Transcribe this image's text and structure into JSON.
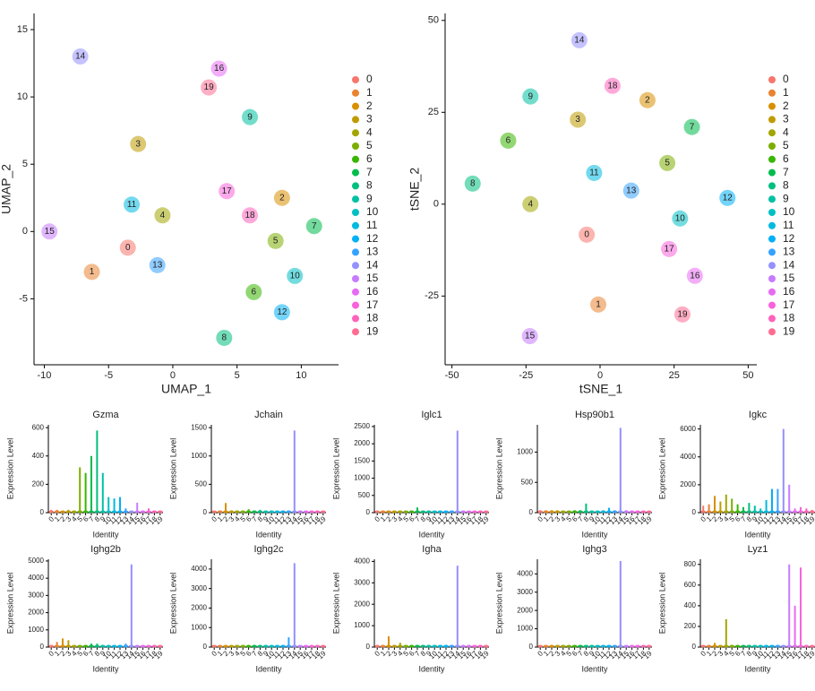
{
  "chart_data": [
    {
      "type": "scatter",
      "xlabel": "UMAP_1",
      "ylabel": "UMAP_2",
      "xlim": [
        -10.8,
        12.9
      ],
      "ylim": [
        -9.9,
        16.2
      ],
      "xticks": [
        -10,
        -5,
        0,
        5,
        10
      ],
      "yticks": [
        -5,
        0,
        5,
        10,
        15
      ],
      "categories": [
        "0",
        "1",
        "2",
        "3",
        "4",
        "5",
        "6",
        "7",
        "8",
        "9",
        "10",
        "11",
        "12",
        "13",
        "14",
        "15",
        "16",
        "17",
        "18",
        "19"
      ],
      "x": [
        -3.5,
        -6.3,
        8.5,
        -2.7,
        -0.8,
        8,
        6.3,
        11,
        4,
        6,
        9.5,
        -3.2,
        8.5,
        -1.2,
        -7.2,
        -9.6,
        3.6,
        4.2,
        6,
        2.8
      ],
      "values": [
        -1.2,
        -3,
        2.5,
        6.5,
        1.2,
        -0.7,
        -4.5,
        0.4,
        -7.9,
        8.5,
        -3.3,
        2,
        -6,
        -2.5,
        13,
        0,
        12.1,
        3,
        1.2,
        10.7
      ],
      "colors": [
        "#F8766D",
        "#EA8331",
        "#D89000",
        "#C09B00",
        "#A3A500",
        "#7CAE00",
        "#39B600",
        "#00BB4E",
        "#00BF7D",
        "#00C1A3",
        "#00BFC4",
        "#00BAE0",
        "#00B0F6",
        "#35A2FF",
        "#9590FF",
        "#C77CFF",
        "#E76BF3",
        "#FA62DB",
        "#FF62BC",
        "#FF6C91"
      ]
    },
    {
      "type": "scatter",
      "xlabel": "tSNE_1",
      "ylabel": "tSNE_2",
      "xlim": [
        -52.3,
        52.9
      ],
      "ylim": [
        -43.7,
        51.9
      ],
      "xticks": [
        -50,
        -25,
        0,
        25,
        50
      ],
      "yticks": [
        -25,
        0,
        25,
        50
      ],
      "categories": [
        "0",
        "1",
        "2",
        "3",
        "4",
        "5",
        "6",
        "7",
        "8",
        "9",
        "10",
        "11",
        "12",
        "13",
        "14",
        "15",
        "16",
        "17",
        "18",
        "19"
      ],
      "x": [
        -4.5,
        -0.6,
        16,
        -7.5,
        -23.5,
        22.7,
        -31,
        31,
        -43,
        -23.5,
        27,
        -2,
        43,
        10.5,
        -7,
        -23.7,
        32,
        23.3,
        4.2,
        27.8
      ],
      "values": [
        -8.3,
        -27.3,
        28.3,
        23,
        0,
        11.2,
        17.3,
        21,
        5.6,
        29.3,
        -3.9,
        8.5,
        1.7,
        3.7,
        44.6,
        -35.9,
        -19.5,
        -12.2,
        32.2,
        -30
      ],
      "colors": [
        "#F8766D",
        "#EA8331",
        "#D89000",
        "#C09B00",
        "#A3A500",
        "#7CAE00",
        "#39B600",
        "#00BB4E",
        "#00BF7D",
        "#00C1A3",
        "#00BFC4",
        "#00BAE0",
        "#00B0F6",
        "#35A2FF",
        "#9590FF",
        "#C77CFF",
        "#E76BF3",
        "#FA62DB",
        "#FF62BC",
        "#FF6C91"
      ]
    },
    {
      "type": "violin",
      "title": "Gzma",
      "ylabel": "Expression Level",
      "xlabel": "Identity",
      "ylim": [
        0,
        620
      ],
      "yticks": [
        0,
        200,
        400,
        600
      ],
      "categories": [
        "0",
        "1",
        "2",
        "3",
        "4",
        "5",
        "6",
        "7",
        "8",
        "9",
        "10",
        "11",
        "12",
        "13",
        "14",
        "15",
        "16",
        "17",
        "18",
        "19"
      ],
      "values": [
        20,
        20,
        10,
        20,
        10,
        320,
        280,
        400,
        580,
        280,
        110,
        100,
        110,
        30,
        10,
        70,
        10,
        30,
        10,
        10
      ],
      "colors": [
        "#F8766D",
        "#EA8331",
        "#D89000",
        "#C09B00",
        "#A3A500",
        "#7CAE00",
        "#39B600",
        "#00BB4E",
        "#00BF7D",
        "#00C1A3",
        "#00BFC4",
        "#00BAE0",
        "#00B0F6",
        "#35A2FF",
        "#9590FF",
        "#C77CFF",
        "#E76BF3",
        "#FA62DB",
        "#FF62BC",
        "#FF6C91"
      ]
    },
    {
      "type": "violin",
      "title": "Jchain",
      "ylabel": "Expression Level",
      "xlabel": "Identity",
      "ylim": [
        0,
        1550
      ],
      "yticks": [
        0,
        500,
        1000,
        1500
      ],
      "categories": [
        "0",
        "1",
        "2",
        "3",
        "4",
        "5",
        "6",
        "7",
        "8",
        "9",
        "10",
        "11",
        "12",
        "13",
        "14",
        "15",
        "16",
        "17",
        "18",
        "19"
      ],
      "values": [
        30,
        20,
        170,
        40,
        40,
        30,
        60,
        30,
        50,
        30,
        20,
        20,
        30,
        40,
        1450,
        40,
        20,
        20,
        20,
        20
      ],
      "colors": [
        "#F8766D",
        "#EA8331",
        "#D89000",
        "#C09B00",
        "#A3A500",
        "#7CAE00",
        "#39B600",
        "#00BB4E",
        "#00BF7D",
        "#00C1A3",
        "#00BFC4",
        "#00BAE0",
        "#00B0F6",
        "#35A2FF",
        "#9590FF",
        "#C77CFF",
        "#E76BF3",
        "#FA62DB",
        "#FF62BC",
        "#FF6C91"
      ]
    },
    {
      "type": "violin",
      "title": "Iglc1",
      "ylabel": "Expression Level",
      "xlabel": "Identity",
      "ylim": [
        0,
        2550
      ],
      "yticks": [
        0,
        500,
        1000,
        1500,
        2000,
        2500
      ],
      "categories": [
        "0",
        "1",
        "2",
        "3",
        "4",
        "5",
        "6",
        "7",
        "8",
        "9",
        "10",
        "11",
        "12",
        "13",
        "14",
        "15",
        "16",
        "17",
        "18",
        "19"
      ],
      "values": [
        40,
        30,
        30,
        30,
        30,
        30,
        30,
        150,
        30,
        30,
        30,
        30,
        30,
        30,
        2380,
        30,
        30,
        30,
        30,
        30
      ],
      "colors": [
        "#F8766D",
        "#EA8331",
        "#D89000",
        "#C09B00",
        "#A3A500",
        "#7CAE00",
        "#39B600",
        "#00BB4E",
        "#00BF7D",
        "#00C1A3",
        "#00BFC4",
        "#00BAE0",
        "#00B0F6",
        "#35A2FF",
        "#9590FF",
        "#C77CFF",
        "#E76BF3",
        "#FA62DB",
        "#FF62BC",
        "#FF6C91"
      ]
    },
    {
      "type": "violin",
      "title": "Hsp90b1",
      "ylabel": "Expression Level",
      "xlabel": "Identity",
      "ylim": [
        0,
        1450
      ],
      "yticks": [
        0,
        500,
        1000
      ],
      "categories": [
        "0",
        "1",
        "2",
        "3",
        "4",
        "5",
        "6",
        "7",
        "8",
        "9",
        "10",
        "11",
        "12",
        "13",
        "14",
        "15",
        "16",
        "17",
        "18",
        "19"
      ],
      "values": [
        40,
        40,
        40,
        40,
        30,
        30,
        40,
        40,
        150,
        30,
        30,
        40,
        80,
        40,
        1400,
        40,
        30,
        30,
        30,
        30
      ],
      "colors": [
        "#F8766D",
        "#EA8331",
        "#D89000",
        "#C09B00",
        "#A3A500",
        "#7CAE00",
        "#39B600",
        "#00BB4E",
        "#00BF7D",
        "#00C1A3",
        "#00BFC4",
        "#00BAE0",
        "#00B0F6",
        "#35A2FF",
        "#9590FF",
        "#C77CFF",
        "#E76BF3",
        "#FA62DB",
        "#FF62BC",
        "#FF6C91"
      ]
    },
    {
      "type": "violin",
      "title": "Igkc",
      "ylabel": "Expression Level",
      "xlabel": "Identity",
      "ylim": [
        0,
        6300
      ],
      "yticks": [
        0,
        2000,
        4000,
        6000
      ],
      "categories": [
        "0",
        "1",
        "2",
        "3",
        "4",
        "5",
        "6",
        "7",
        "8",
        "9",
        "10",
        "11",
        "12",
        "13",
        "14",
        "15",
        "16",
        "17",
        "18",
        "19"
      ],
      "values": [
        500,
        600,
        1200,
        800,
        1300,
        1000,
        600,
        400,
        700,
        500,
        300,
        900,
        1700,
        1700,
        6000,
        2000,
        300,
        400,
        300,
        200
      ],
      "colors": [
        "#F8766D",
        "#EA8331",
        "#D89000",
        "#C09B00",
        "#A3A500",
        "#7CAE00",
        "#39B600",
        "#00BB4E",
        "#00BF7D",
        "#00C1A3",
        "#00BFC4",
        "#00BAE0",
        "#00B0F6",
        "#35A2FF",
        "#9590FF",
        "#C77CFF",
        "#E76BF3",
        "#FA62DB",
        "#FF62BC",
        "#FF6C91"
      ]
    },
    {
      "type": "violin",
      "title": "Ighg2b",
      "ylabel": "Expression Level",
      "xlabel": "Identity",
      "ylim": [
        0,
        5100
      ],
      "yticks": [
        0,
        1000,
        2000,
        3000,
        4000,
        5000
      ],
      "categories": [
        "0",
        "1",
        "2",
        "3",
        "4",
        "5",
        "6",
        "7",
        "8",
        "9",
        "10",
        "11",
        "12",
        "13",
        "14",
        "15",
        "16",
        "17",
        "18",
        "19"
      ],
      "values": [
        100,
        300,
        500,
        400,
        100,
        100,
        100,
        200,
        200,
        100,
        100,
        100,
        100,
        200,
        4800,
        100,
        100,
        100,
        100,
        100
      ],
      "colors": [
        "#F8766D",
        "#EA8331",
        "#D89000",
        "#C09B00",
        "#A3A500",
        "#7CAE00",
        "#39B600",
        "#00BB4E",
        "#00BF7D",
        "#00C1A3",
        "#00BFC4",
        "#00BAE0",
        "#00B0F6",
        "#35A2FF",
        "#9590FF",
        "#C77CFF",
        "#E76BF3",
        "#FA62DB",
        "#FF62BC",
        "#FF6C91"
      ]
    },
    {
      "type": "violin",
      "title": "Ighg2c",
      "ylabel": "Expression Level",
      "xlabel": "Identity",
      "ylim": [
        0,
        4500
      ],
      "yticks": [
        0,
        1000,
        2000,
        3000,
        4000
      ],
      "categories": [
        "0",
        "1",
        "2",
        "3",
        "4",
        "5",
        "6",
        "7",
        "8",
        "9",
        "10",
        "11",
        "12",
        "13",
        "14",
        "15",
        "16",
        "17",
        "18",
        "19"
      ],
      "values": [
        30,
        30,
        30,
        30,
        30,
        30,
        30,
        30,
        30,
        30,
        30,
        30,
        30,
        500,
        4300,
        30,
        30,
        30,
        30,
        30
      ],
      "colors": [
        "#F8766D",
        "#EA8331",
        "#D89000",
        "#C09B00",
        "#A3A500",
        "#7CAE00",
        "#39B600",
        "#00BB4E",
        "#00BF7D",
        "#00C1A3",
        "#00BFC4",
        "#00BAE0",
        "#00B0F6",
        "#35A2FF",
        "#9590FF",
        "#C77CFF",
        "#E76BF3",
        "#FA62DB",
        "#FF62BC",
        "#FF6C91"
      ]
    },
    {
      "type": "violin",
      "title": "Igha",
      "ylabel": "Expression Level",
      "xlabel": "Identity",
      "ylim": [
        0,
        4100
      ],
      "yticks": [
        0,
        1000,
        2000,
        3000,
        4000
      ],
      "categories": [
        "0",
        "1",
        "2",
        "3",
        "4",
        "5",
        "6",
        "7",
        "8",
        "9",
        "10",
        "11",
        "12",
        "13",
        "14",
        "15",
        "16",
        "17",
        "18",
        "19"
      ],
      "values": [
        100,
        100,
        500,
        100,
        200,
        100,
        100,
        100,
        100,
        100,
        100,
        100,
        100,
        100,
        3800,
        100,
        100,
        100,
        100,
        100
      ],
      "colors": [
        "#F8766D",
        "#EA8331",
        "#D89000",
        "#C09B00",
        "#A3A500",
        "#7CAE00",
        "#39B600",
        "#00BB4E",
        "#00BF7D",
        "#00C1A3",
        "#00BFC4",
        "#00BAE0",
        "#00B0F6",
        "#35A2FF",
        "#9590FF",
        "#C77CFF",
        "#E76BF3",
        "#FA62DB",
        "#FF62BC",
        "#FF6C91"
      ]
    },
    {
      "type": "violin",
      "title": "Ighg3",
      "ylabel": "Expression Level",
      "xlabel": "Identity",
      "ylim": [
        0,
        4800
      ],
      "yticks": [
        0,
        1000,
        2000,
        3000,
        4000
      ],
      "categories": [
        "0",
        "1",
        "2",
        "3",
        "4",
        "5",
        "6",
        "7",
        "8",
        "9",
        "10",
        "11",
        "12",
        "13",
        "14",
        "15",
        "16",
        "17",
        "18",
        "19"
      ],
      "values": [
        100,
        30,
        30,
        30,
        30,
        30,
        30,
        30,
        30,
        30,
        30,
        30,
        30,
        30,
        4700,
        30,
        30,
        30,
        30,
        30
      ],
      "colors": [
        "#F8766D",
        "#EA8331",
        "#D89000",
        "#C09B00",
        "#A3A500",
        "#7CAE00",
        "#39B600",
        "#00BB4E",
        "#00BF7D",
        "#00C1A3",
        "#00BFC4",
        "#00BAE0",
        "#00B0F6",
        "#35A2FF",
        "#9590FF",
        "#C77CFF",
        "#E76BF3",
        "#FA62DB",
        "#FF62BC",
        "#FF6C91"
      ]
    },
    {
      "type": "violin",
      "title": "Lyz1",
      "ylabel": "Expression Level",
      "xlabel": "Identity",
      "ylim": [
        0,
        850
      ],
      "yticks": [
        0,
        200,
        400,
        600,
        800
      ],
      "categories": [
        "0",
        "1",
        "2",
        "3",
        "4",
        "5",
        "6",
        "7",
        "8",
        "9",
        "10",
        "11",
        "12",
        "13",
        "14",
        "15",
        "16",
        "17",
        "18",
        "19"
      ],
      "values": [
        10,
        10,
        40,
        10,
        270,
        20,
        10,
        10,
        10,
        10,
        10,
        10,
        10,
        10,
        10,
        800,
        400,
        770,
        10,
        10
      ],
      "colors": [
        "#F8766D",
        "#EA8331",
        "#D89000",
        "#C09B00",
        "#A3A500",
        "#7CAE00",
        "#39B600",
        "#00BB4E",
        "#00BF7D",
        "#00C1A3",
        "#00BFC4",
        "#00BAE0",
        "#00B0F6",
        "#35A2FF",
        "#9590FF",
        "#C77CFF",
        "#E76BF3",
        "#FA62DB",
        "#FF62BC",
        "#FF6C91"
      ]
    }
  ]
}
